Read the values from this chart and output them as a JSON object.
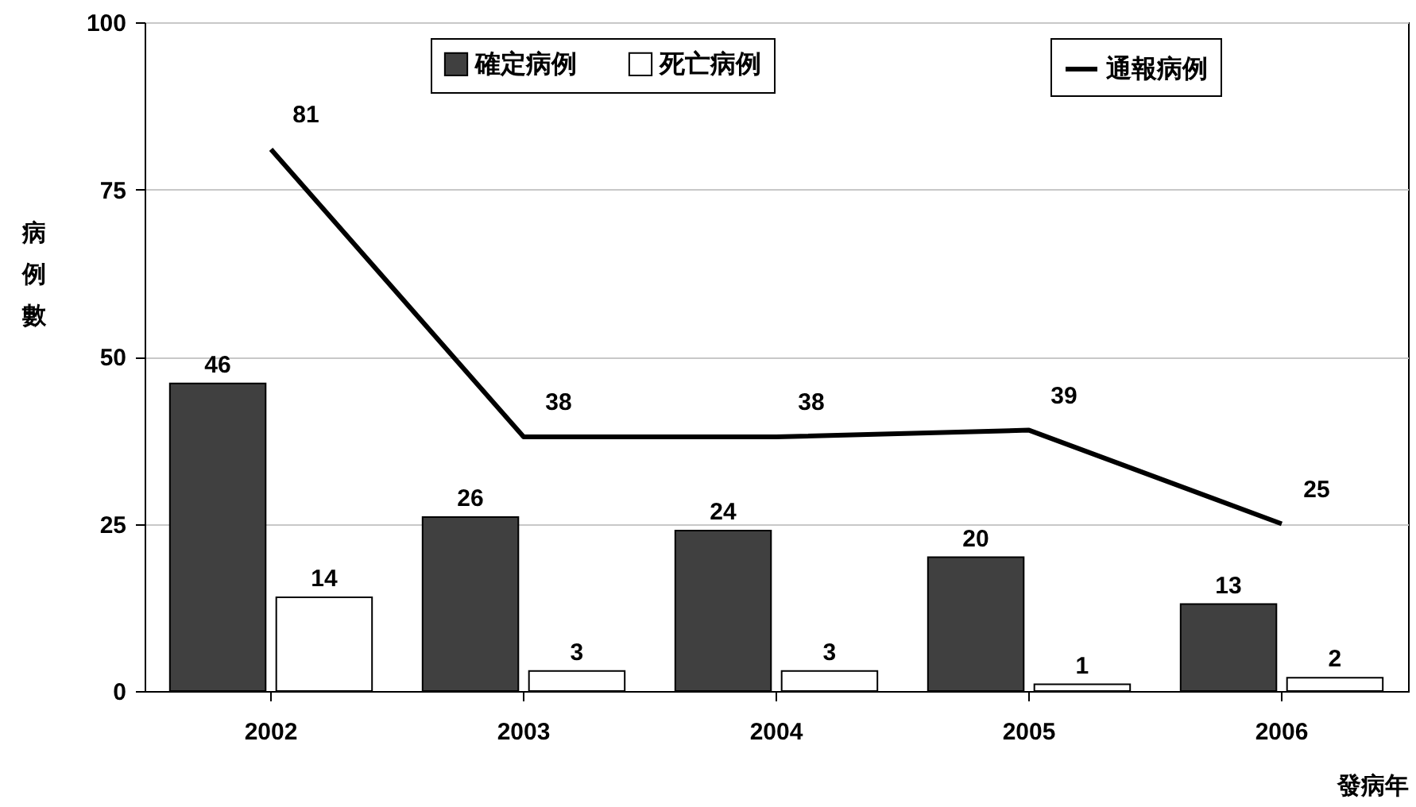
{
  "chart_data": {
    "type": "bar",
    "xlabel": "發病年",
    "ylabel": "病例數",
    "categories": [
      "2002",
      "2003",
      "2004",
      "2005",
      "2006"
    ],
    "series": [
      {
        "name": "確定病例",
        "color": "#404040",
        "values": [
          46,
          26,
          24,
          20,
          13
        ]
      },
      {
        "name": "死亡病例",
        "color": "#ffffff",
        "values": [
          14,
          3,
          3,
          1,
          2
        ]
      },
      {
        "name": "通報病例",
        "type": "line",
        "color": "#000000",
        "values": [
          81,
          38,
          38,
          39,
          25
        ]
      }
    ],
    "ylim": [
      0,
      100
    ],
    "yticks": [
      0,
      25,
      50,
      75,
      100
    ],
    "grid": "y",
    "legend": "top",
    "data_labels": true
  }
}
